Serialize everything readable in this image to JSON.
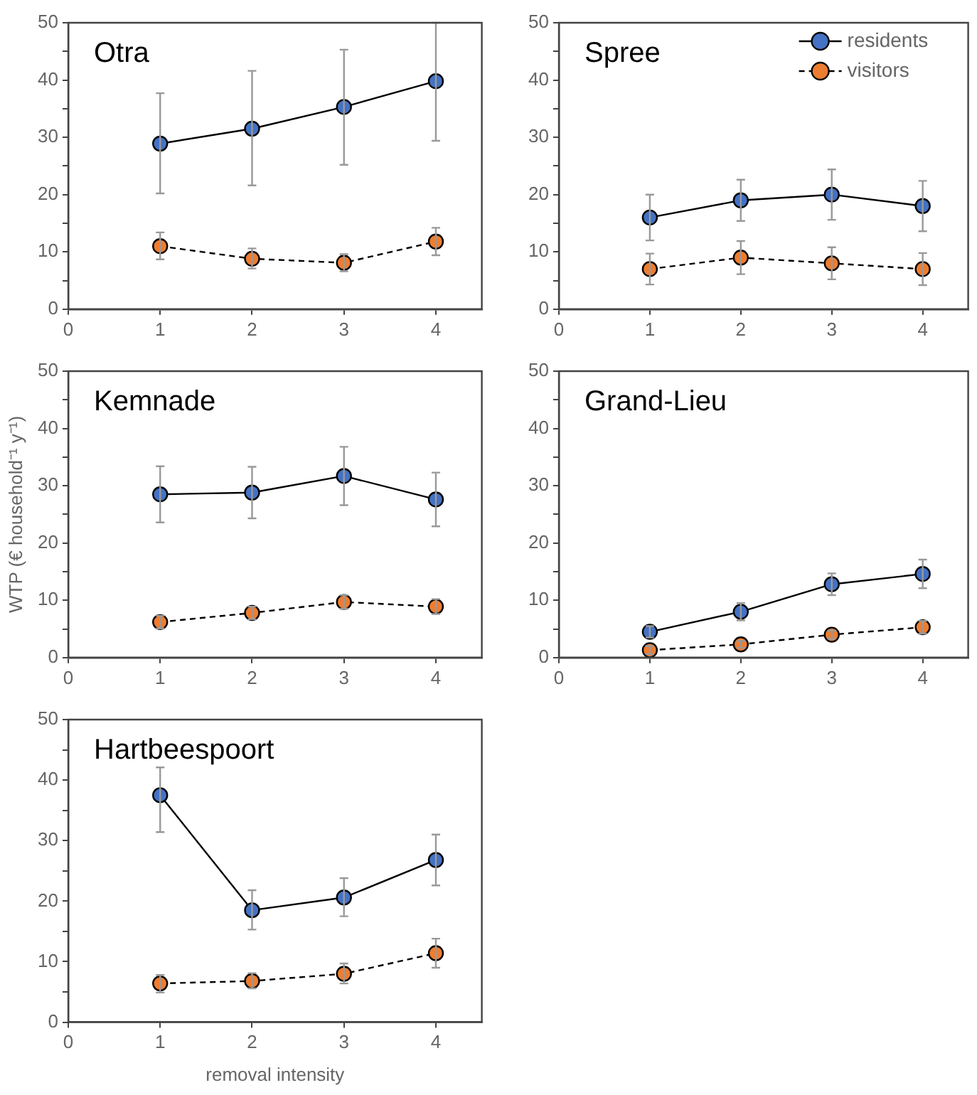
{
  "chart_data": [
    {
      "type": "line",
      "title": "Otra",
      "x": [
        1,
        2,
        3,
        4
      ],
      "xlim": [
        0,
        4.5
      ],
      "xticks": [
        0,
        1,
        2,
        3,
        4
      ],
      "ylim": [
        0,
        50
      ],
      "yticks": [
        0,
        {
          "value": 5,
          "label": null
        },
        10,
        {
          "value": 15,
          "label": null
        },
        20,
        {
          "value": 25,
          "label": null
        },
        30,
        {
          "value": 35,
          "label": null
        },
        40,
        {
          "value": 45,
          "label": null
        },
        50
      ],
      "grid": false,
      "legend": false,
      "marker": "circle",
      "series": [
        {
          "color": "#4472c4",
          "line_style": "solid",
          "values": [
            28.9,
            31.5,
            35.3,
            39.8
          ],
          "errors": [
            [
              20.2,
              37.7
            ],
            [
              21.6,
              41.6
            ],
            [
              25.2,
              45.3
            ],
            [
              29.4,
              50
            ]
          ]
        },
        {
          "color": "#ed7d31",
          "line_style": "dashed",
          "values": [
            11.0,
            8.8,
            8.1,
            11.8
          ],
          "errors": [
            [
              8.7,
              13.4
            ],
            [
              7.1,
              10.6
            ],
            [
              6.6,
              9.6
            ],
            [
              9.4,
              14.2
            ]
          ]
        }
      ]
    },
    {
      "type": "line",
      "title": "Spree",
      "x": [
        1,
        2,
        3,
        4
      ],
      "xlim": [
        0,
        4.5
      ],
      "xticks": [
        0,
        1,
        2,
        3,
        4
      ],
      "ylim": [
        0,
        50
      ],
      "yticks": [
        0,
        {
          "value": 5,
          "label": null
        },
        10,
        {
          "value": 15,
          "label": null
        },
        20,
        {
          "value": 25,
          "label": null
        },
        30,
        {
          "value": 35,
          "label": null
        },
        40,
        {
          "value": 45,
          "label": null
        },
        50
      ],
      "grid": false,
      "legend": "top right",
      "marker": "circle",
      "series": [
        {
          "name": "residents",
          "color": "#4472c4",
          "line_style": "solid",
          "values": [
            16,
            19,
            20,
            18
          ],
          "errors": [
            [
              12,
              20
            ],
            [
              15.4,
              22.6
            ],
            [
              15.6,
              24.4
            ],
            [
              13.6,
              22.4
            ]
          ]
        },
        {
          "name": "visitors",
          "color": "#ed7d31",
          "line_style": "dashed",
          "values": [
            7,
            9,
            8,
            7
          ],
          "errors": [
            [
              4.3,
              9.7
            ],
            [
              6.1,
              11.9
            ],
            [
              5.2,
              10.8
            ],
            [
              4.2,
              9.8
            ]
          ]
        }
      ]
    },
    {
      "type": "line",
      "title": "Kemnade",
      "ylabel": "WTP (€ household⁻¹ y⁻¹)",
      "x": [
        1,
        2,
        3,
        4
      ],
      "xlim": [
        0,
        4.5
      ],
      "xticks": [
        0,
        1,
        2,
        3,
        4
      ],
      "ylim": [
        0,
        50
      ],
      "yticks": [
        0,
        {
          "value": 5,
          "label": null
        },
        10,
        {
          "value": 15,
          "label": null
        },
        20,
        {
          "value": 25,
          "label": null
        },
        30,
        {
          "value": 35,
          "label": null
        },
        40,
        {
          "value": 45,
          "label": null
        },
        50
      ],
      "grid": false,
      "legend": false,
      "marker": "circle",
      "series": [
        {
          "color": "#4472c4",
          "line_style": "solid",
          "values": [
            28.5,
            28.8,
            31.7,
            27.6
          ],
          "errors": [
            [
              23.6,
              33.4
            ],
            [
              24.3,
              33.3
            ],
            [
              26.6,
              36.8
            ],
            [
              22.9,
              32.3
            ]
          ]
        },
        {
          "color": "#ed7d31",
          "line_style": "dashed",
          "values": [
            6.2,
            7.8,
            9.7,
            8.9
          ],
          "errors": [
            [
              5.1,
              7.3
            ],
            [
              6.7,
              8.9
            ],
            [
              8.5,
              10.9
            ],
            [
              7.6,
              10.2
            ]
          ]
        }
      ]
    },
    {
      "type": "line",
      "title": "Grand-Lieu",
      "x": [
        1,
        2,
        3,
        4
      ],
      "xlim": [
        0,
        4.5
      ],
      "xticks": [
        0,
        1,
        2,
        3,
        4
      ],
      "ylim": [
        0,
        50
      ],
      "yticks": [
        0,
        {
          "value": 5,
          "label": null
        },
        10,
        {
          "value": 15,
          "label": null
        },
        20,
        {
          "value": 25,
          "label": null
        },
        30,
        {
          "value": 35,
          "label": null
        },
        40,
        {
          "value": 45,
          "label": null
        },
        50
      ],
      "grid": false,
      "legend": false,
      "marker": "circle",
      "series": [
        {
          "color": "#4472c4",
          "line_style": "solid",
          "values": [
            4.5,
            8.0,
            12.8,
            14.6
          ],
          "errors": [
            [
              3.5,
              5.5
            ],
            [
              6.5,
              9.5
            ],
            [
              10.9,
              14.7
            ],
            [
              12.1,
              17.1
            ]
          ]
        },
        {
          "color": "#ed7d31",
          "line_style": "dashed",
          "values": [
            1.3,
            2.3,
            4.0,
            5.3
          ],
          "errors": [
            [
              0.6,
              2.0
            ],
            [
              1.7,
              2.9
            ],
            [
              3.3,
              4.7
            ],
            [
              4.2,
              6.4
            ]
          ]
        }
      ]
    },
    {
      "type": "line",
      "title": "Hartbeespoort",
      "xlabel": "removal intensity",
      "x": [
        1,
        2,
        3,
        4
      ],
      "xlim": [
        0,
        4.5
      ],
      "xticks": [
        0,
        1,
        2,
        3,
        4
      ],
      "ylim": [
        0,
        50
      ],
      "yticks": [
        0,
        {
          "value": 5,
          "label": null
        },
        10,
        {
          "value": 15,
          "label": null
        },
        20,
        {
          "value": 25,
          "label": null
        },
        30,
        {
          "value": 35,
          "label": null
        },
        40,
        {
          "value": 45,
          "label": null
        },
        50
      ],
      "grid": false,
      "legend": false,
      "marker": "circle",
      "series": [
        {
          "color": "#4472c4",
          "line_style": "solid",
          "values": [
            37.5,
            18.5,
            20.6,
            26.8
          ],
          "errors": [
            [
              31.4,
              42.1
            ],
            [
              15.3,
              21.8
            ],
            [
              17.5,
              23.8
            ],
            [
              22.6,
              31.0
            ]
          ]
        },
        {
          "color": "#ed7d31",
          "line_style": "dashed",
          "values": [
            6.4,
            6.8,
            8.0,
            11.4
          ],
          "errors": [
            [
              4.9,
              7.8
            ],
            [
              5.6,
              8.1
            ],
            [
              6.4,
              9.7
            ],
            [
              9.0,
              13.8
            ]
          ]
        }
      ]
    }
  ]
}
